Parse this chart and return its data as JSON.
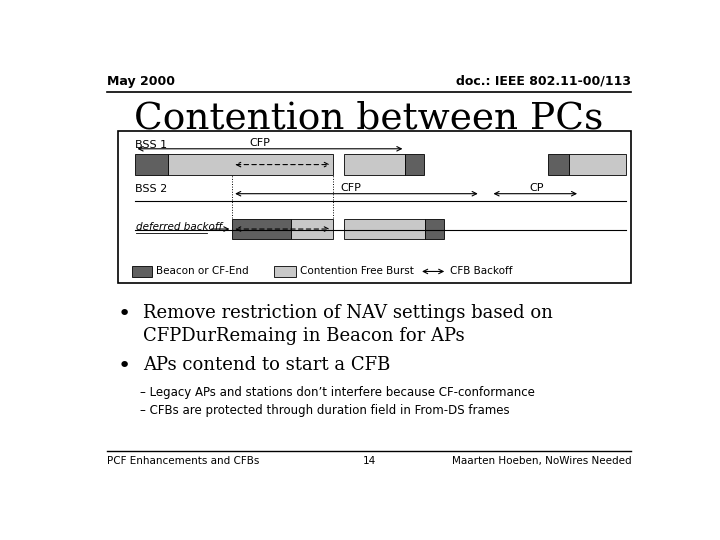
{
  "title": "Contention between PCs",
  "header_left": "May 2000",
  "header_right": "doc.: IEEE 802.11-00/113",
  "footer_left": "PCF Enhancements and CFBs",
  "footer_center": "14",
  "footer_right": "Maarten Hoeben, NoWires Needed",
  "slide_bg": "#ffffff",
  "dark_gray": "#606060",
  "light_gray": "#c8c8c8",
  "bullet1": "Remove restriction of NAV settings based on\nCFPDurRemaing in Beacon for APs",
  "bullet2": "APs contend to start a CFB",
  "sub1": "Legacy APs and stations don’t interfere because CF-conformance",
  "sub2": "CFBs are protected through duration field in From-DS frames",
  "legend_beacon": "Beacon or CF-End",
  "legend_cfb": "Contention Free Burst",
  "legend_backoff": "CFB Backoff"
}
